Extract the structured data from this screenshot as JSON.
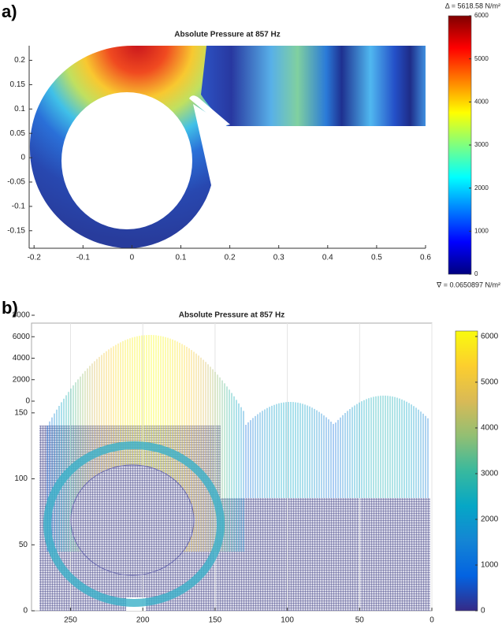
{
  "chart_data": [
    {
      "type": "surface-2d",
      "panel_label": "a)",
      "title": "Absolute Pressure at 857 Hz",
      "xlim": [
        -0.21,
        0.6
      ],
      "ylim": [
        -0.186,
        0.23
      ],
      "xticks": [
        -0.2,
        -0.1,
        0,
        0.1,
        0.2,
        0.3,
        0.4,
        0.5,
        0.6
      ],
      "yticks": [
        -0.15,
        -0.1,
        -0.05,
        0,
        0.05,
        0.1,
        0.15,
        0.2
      ],
      "colorbar": {
        "colormap": "jet",
        "clim": [
          0,
          6000
        ],
        "ticks": [
          0,
          1000,
          2000,
          3000,
          4000,
          5000,
          6000
        ],
        "max_label": "Δ = 5618.58 N/m²",
        "min_label": "∇ = 0.0650897 N/m²"
      }
    },
    {
      "type": "surface-3d",
      "panel_label": "b)",
      "title": "Absolute Pressure at 857 Hz",
      "xlim": [
        277,
        0
      ],
      "ylim": [
        0,
        218
      ],
      "zlim": [
        0,
        8000
      ],
      "xticks": [
        250,
        200,
        150,
        100,
        50,
        0
      ],
      "yticks": [
        0,
        50,
        100,
        150
      ],
      "zticks": [
        0,
        2000,
        4000,
        6000,
        8000
      ],
      "colorbar": {
        "colormap": "parula",
        "clim": [
          0,
          6120
        ],
        "ticks": [
          0,
          1000,
          2000,
          3000,
          4000,
          5000,
          6000
        ]
      }
    }
  ]
}
